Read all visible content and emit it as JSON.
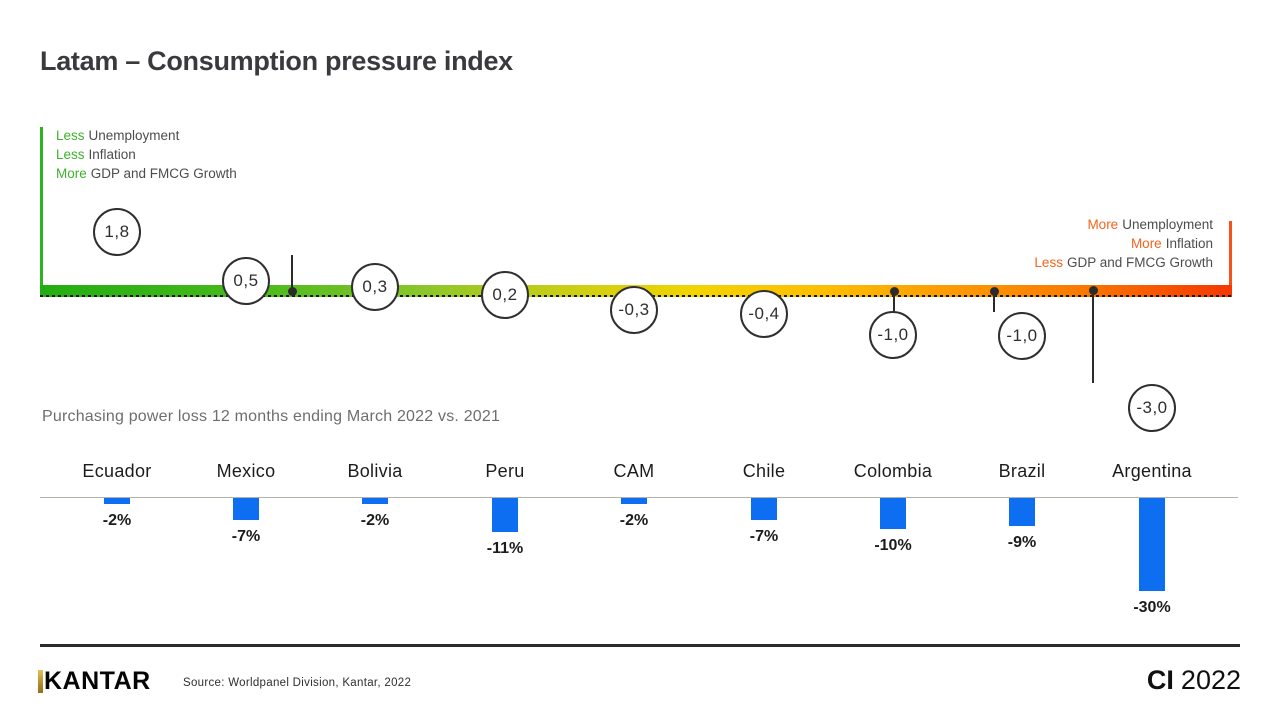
{
  "title": "Latam – Consumption pressure index",
  "subtitle": "Purchasing power loss 12 months ending March 2022 vs. 2021",
  "legend_left": {
    "lines": [
      {
        "highlight": "Less",
        "rest": "Unemployment"
      },
      {
        "highlight": "Less",
        "rest": "Inflation"
      },
      {
        "highlight": "More",
        "rest": "GDP and FMCG Growth"
      }
    ],
    "highlight_color": "#3eb42c"
  },
  "legend_right": {
    "lines": [
      {
        "highlight": "More",
        "rest": "Unemployment"
      },
      {
        "highlight": "More",
        "rest": "Inflation"
      },
      {
        "highlight": "Less",
        "rest": "GDP and FMCG Growth"
      }
    ],
    "highlight_color": "#f4641c"
  },
  "footer": {
    "brand": "KANTAR",
    "source": "Source: Worldpanel Division, Kantar, 2022",
    "badge_bold": "CI",
    "badge_regular": "2022"
  },
  "colors": {
    "accent_green": "#3eb42c",
    "accent_orange": "#f4641c",
    "bar_blue": "#0d6ef2",
    "gradient_left": "#23ad12",
    "gradient_mid": "#f2d400",
    "gradient_right": "#f43800"
  },
  "chart_data": {
    "type": "combo",
    "categories": [
      "Ecuador",
      "Mexico",
      "Bolivia",
      "Peru",
      "CAM",
      "Chile",
      "Colombia",
      "Brazil",
      "Argentina"
    ],
    "charts": [
      {
        "type": "scatter",
        "name": "Consumption pressure index",
        "values": [
          1.8,
          0.5,
          0.3,
          0.2,
          -0.3,
          -0.4,
          -1.0,
          -1.0,
          -3.0
        ],
        "labels": [
          "1,8",
          "0,5",
          "0,3",
          "0,2",
          "-0,3",
          "-0,4",
          "-1,0",
          "-1,0",
          "-3,0"
        ],
        "axis": "horizontal green-to-red gradient, higher value = less consumption pressure",
        "ylim": [
          -3.5,
          2.0
        ],
        "grid": false,
        "legend_position": "none"
      },
      {
        "type": "bar",
        "name": "Purchasing power loss 12 months ending March 2022 vs. 2021",
        "values": [
          -2,
          -7,
          -2,
          -11,
          -2,
          -7,
          -10,
          -9,
          -30
        ],
        "labels": [
          "-2%",
          "-7%",
          "-2%",
          "-11%",
          "-2%",
          "-7%",
          "-10%",
          "-9%",
          "-30%"
        ],
        "bar_color": "#0d6ef2",
        "ylim": [
          -30,
          0
        ],
        "grid": false
      }
    ]
  }
}
